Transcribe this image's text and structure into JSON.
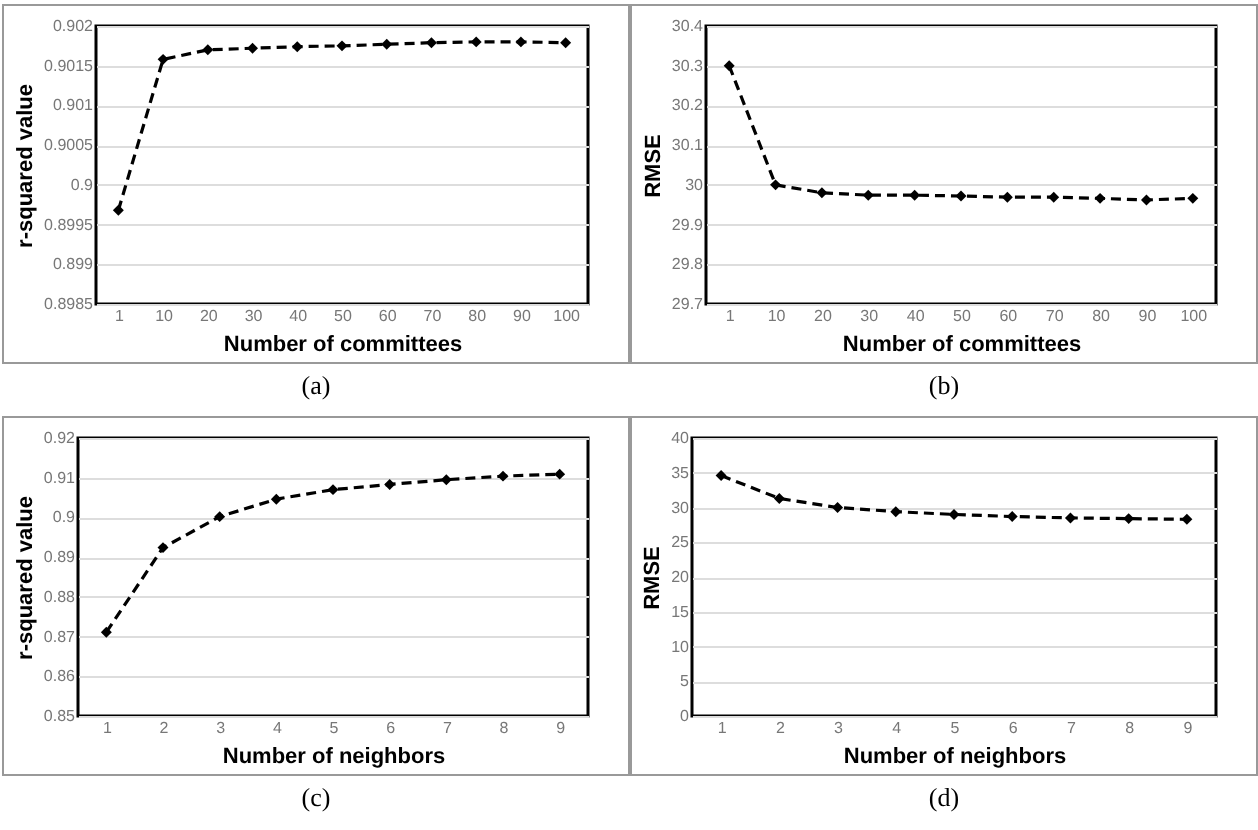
{
  "chart_data": [
    {
      "type": "line",
      "categories": [
        "1",
        "10",
        "20",
        "30",
        "40",
        "50",
        "60",
        "70",
        "80",
        "90",
        "100"
      ],
      "series": [
        {
          "color": "#000000",
          "values": [
            0.89968,
            0.90158,
            0.9017,
            0.90172,
            0.90174,
            0.90175,
            0.90177,
            0.90179,
            0.9018,
            0.9018,
            0.90179
          ]
        }
      ],
      "ylim": [
        0.8985,
        0.902
      ],
      "yticks": [
        0.8985,
        0.899,
        0.8995,
        0.9,
        0.9005,
        0.901,
        0.9015,
        0.902
      ],
      "xlabel": "Number of committees",
      "ylabel": "r-squared value",
      "grid": "y",
      "marker": "diamond",
      "line_style": "dashed",
      "annotations": [
        "(a)"
      ]
    },
    {
      "type": "line",
      "categories": [
        "1",
        "10",
        "20",
        "30",
        "40",
        "50",
        "60",
        "70",
        "80",
        "90",
        "100"
      ],
      "series": [
        {
          "color": "#000000",
          "values": [
            30.3,
            30.0,
            29.98,
            29.974,
            29.974,
            29.972,
            29.969,
            29.969,
            29.966,
            29.962,
            29.966
          ]
        }
      ],
      "ylim": [
        29.7,
        30.4
      ],
      "yticks": [
        29.7,
        29.8,
        29.9,
        30,
        30.1,
        30.2,
        30.3,
        30.4
      ],
      "xlabel": "Number of committees",
      "ylabel": "RMSE",
      "grid": "y",
      "marker": "diamond",
      "line_style": "dashed",
      "annotations": [
        "(b)"
      ]
    },
    {
      "type": "line",
      "categories": [
        "1",
        "2",
        "3",
        "4",
        "5",
        "6",
        "7",
        "8",
        "9"
      ],
      "series": [
        {
          "color": "#000000",
          "values": [
            0.8711,
            0.8924,
            0.9002,
            0.9046,
            0.907,
            0.9083,
            0.9095,
            0.9104,
            0.9109
          ]
        }
      ],
      "ylim": [
        0.85,
        0.92
      ],
      "yticks": [
        0.85,
        0.86,
        0.87,
        0.88,
        0.89,
        0.9,
        0.91,
        0.92
      ],
      "xlabel": "Number of neighbors",
      "ylabel": "r-squared value",
      "grid": "y",
      "marker": "diamond",
      "line_style": "dashed",
      "annotations": [
        "(c)"
      ]
    },
    {
      "type": "line",
      "categories": [
        "1",
        "2",
        "3",
        "4",
        "5",
        "6",
        "7",
        "8",
        "9"
      ],
      "series": [
        {
          "color": "#000000",
          "values": [
            34.6,
            31.3,
            30.0,
            29.4,
            29.0,
            28.7,
            28.5,
            28.4,
            28.3
          ]
        }
      ],
      "ylim": [
        0,
        40
      ],
      "yticks": [
        0,
        5,
        10,
        15,
        20,
        25,
        30,
        35,
        40
      ],
      "xlabel": "Number of neighbors",
      "ylabel": "RMSE",
      "grid": "y",
      "marker": "diamond",
      "line_style": "dashed",
      "annotations": [
        "(d)"
      ]
    }
  ]
}
